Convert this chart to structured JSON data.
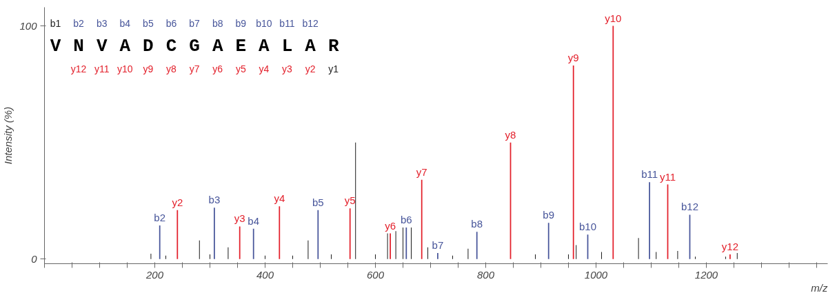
{
  "chart_data": {
    "type": "bar",
    "xlabel": "m/z",
    "ylabel": "Intensity (%)",
    "xlim": [
      0,
      1420
    ],
    "ylim": [
      -2,
      108
    ],
    "xticks": [
      {
        "value": 0,
        "label": null
      },
      {
        "value": 50,
        "label": null
      },
      {
        "value": 100,
        "label": null
      },
      {
        "value": 150,
        "label": null
      },
      200,
      {
        "value": 250,
        "label": null
      },
      {
        "value": 300,
        "label": null
      },
      {
        "value": 350,
        "label": null
      },
      400,
      {
        "value": 450,
        "label": null
      },
      {
        "value": 500,
        "label": null
      },
      {
        "value": 550,
        "label": null
      },
      600,
      {
        "value": 650,
        "label": null
      },
      {
        "value": 700,
        "label": null
      },
      {
        "value": 750,
        "label": null
      },
      800,
      {
        "value": 850,
        "label": null
      },
      {
        "value": 900,
        "label": null
      },
      {
        "value": 950,
        "label": null
      },
      1000,
      {
        "value": 1050,
        "label": null
      },
      {
        "value": 1100,
        "label": null
      },
      {
        "value": 1150,
        "label": null
      },
      1200,
      {
        "value": 1250,
        "label": null
      },
      {
        "value": 1300,
        "label": null
      },
      {
        "value": 1350,
        "label": null
      },
      {
        "value": 1400,
        "label": null
      }
    ],
    "yticks": [
      0,
      100
    ],
    "annotations": [
      "b1 b2 b3 b4 b5 b6 b7 b8 b9 b10 b11 b12",
      "V N V A D C G A E A L A R",
      "y12 y11 y10 y9 y8 y7 y6 y5 y4 y3 y2 y1"
    ],
    "series": [
      {
        "color": "#222222",
        "x": [
          193,
          220,
          281,
          300,
          333,
          400,
          450,
          478,
          520,
          564,
          600,
          622,
          637,
          650,
          665,
          695,
          740,
          768,
          890,
          950,
          964,
          1010,
          1077,
          1109,
          1148,
          1180,
          1235,
          1256
        ],
        "values": [
          2.3,
          1.5,
          8,
          2,
          5,
          1.5,
          1.5,
          8,
          2,
          50,
          2,
          11,
          12,
          13.5,
          13.5,
          5,
          1.5,
          4.4,
          2,
          2,
          6,
          3,
          9,
          3,
          3.5,
          1,
          1,
          2.6
        ]
      },
      {
        "color": "#47559a",
        "x": [
          209,
          308,
          379,
          496,
          656,
          713,
          784,
          914,
          985,
          1097,
          1170
        ],
        "values": [
          14.4,
          22,
          13,
          21,
          13.5,
          2.6,
          11.7,
          15.5,
          10.5,
          33,
          19
        ],
        "value_labels": [
          "b2",
          "b3",
          "b4",
          "b5",
          "b6",
          "b7",
          "b8",
          "b9",
          "b10",
          "b11",
          "b12"
        ]
      },
      {
        "color": "#e3202b",
        "x": [
          241,
          354,
          426,
          554,
          627,
          684,
          845,
          959,
          1031,
          1130,
          1243
        ],
        "values": [
          21,
          14,
          22.6,
          21.7,
          11,
          34,
          50,
          83,
          100,
          32,
          2
        ],
        "value_labels": [
          "y2",
          "y3",
          "y4",
          "y5",
          "y6",
          "y7",
          "y8",
          "y9",
          "y10",
          "y11",
          "y12"
        ]
      }
    ]
  }
}
